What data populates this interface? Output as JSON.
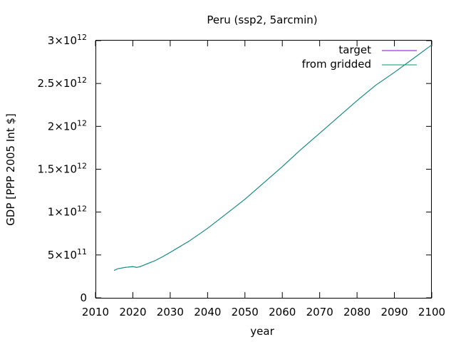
{
  "chart_data": {
    "type": "line",
    "title": "Peru (ssp2, 5arcmin)",
    "xlabel": "year",
    "ylabel": "GDP [PPP 2005 Int $]",
    "xlim": [
      2010,
      2100
    ],
    "ylim": [
      0,
      3000000000000
    ],
    "x_ticks": [
      2010,
      2020,
      2030,
      2040,
      2050,
      2060,
      2070,
      2080,
      2090,
      2100
    ],
    "x_tick_labels": [
      "2010",
      "2020",
      "2030",
      "2040",
      "2050",
      "2060",
      "2070",
      "2080",
      "2090",
      "2100"
    ],
    "y_ticks": [
      0,
      500000000000,
      1000000000000,
      1500000000000,
      2000000000000,
      2500000000000,
      3000000000000
    ],
    "y_tick_labels": [
      {
        "mantissa": "0",
        "exponent": ""
      },
      {
        "mantissa": "5×10",
        "exponent": "11"
      },
      {
        "mantissa": "1×10",
        "exponent": "12"
      },
      {
        "mantissa": "1.5×10",
        "exponent": "12"
      },
      {
        "mantissa": "2×10",
        "exponent": "12"
      },
      {
        "mantissa": "2.5×10",
        "exponent": "12"
      },
      {
        "mantissa": "3×10",
        "exponent": "12"
      }
    ],
    "grid": false,
    "legend_position": "top-right",
    "series": [
      {
        "name": "target",
        "color": "#9400d3",
        "x": [
          2015,
          2016,
          2018,
          2020,
          2021,
          2022,
          2024,
          2026,
          2028,
          2030,
          2035,
          2040,
          2045,
          2050,
          2055,
          2060,
          2065,
          2070,
          2075,
          2080,
          2085,
          2090,
          2095,
          2100
        ],
        "y": [
          320000000000,
          340000000000,
          355000000000,
          365000000000,
          355000000000,
          365000000000,
          400000000000,
          435000000000,
          480000000000,
          530000000000,
          660000000000,
          810000000000,
          980000000000,
          1150000000000,
          1340000000000,
          1530000000000,
          1730000000000,
          1920000000000,
          2110000000000,
          2300000000000,
          2480000000000,
          2630000000000,
          2790000000000,
          2950000000000
        ]
      },
      {
        "name": "from gridded",
        "color": "#009e73",
        "x": [
          2015,
          2016,
          2018,
          2020,
          2021,
          2022,
          2024,
          2026,
          2028,
          2030,
          2035,
          2040,
          2045,
          2050,
          2055,
          2060,
          2065,
          2070,
          2075,
          2080,
          2085,
          2090,
          2095,
          2100
        ],
        "y": [
          320000000000,
          340000000000,
          355000000000,
          365000000000,
          355000000000,
          365000000000,
          400000000000,
          435000000000,
          480000000000,
          530000000000,
          660000000000,
          810000000000,
          980000000000,
          1150000000000,
          1340000000000,
          1530000000000,
          1730000000000,
          1920000000000,
          2110000000000,
          2300000000000,
          2480000000000,
          2630000000000,
          2790000000000,
          2950000000000
        ]
      }
    ]
  }
}
